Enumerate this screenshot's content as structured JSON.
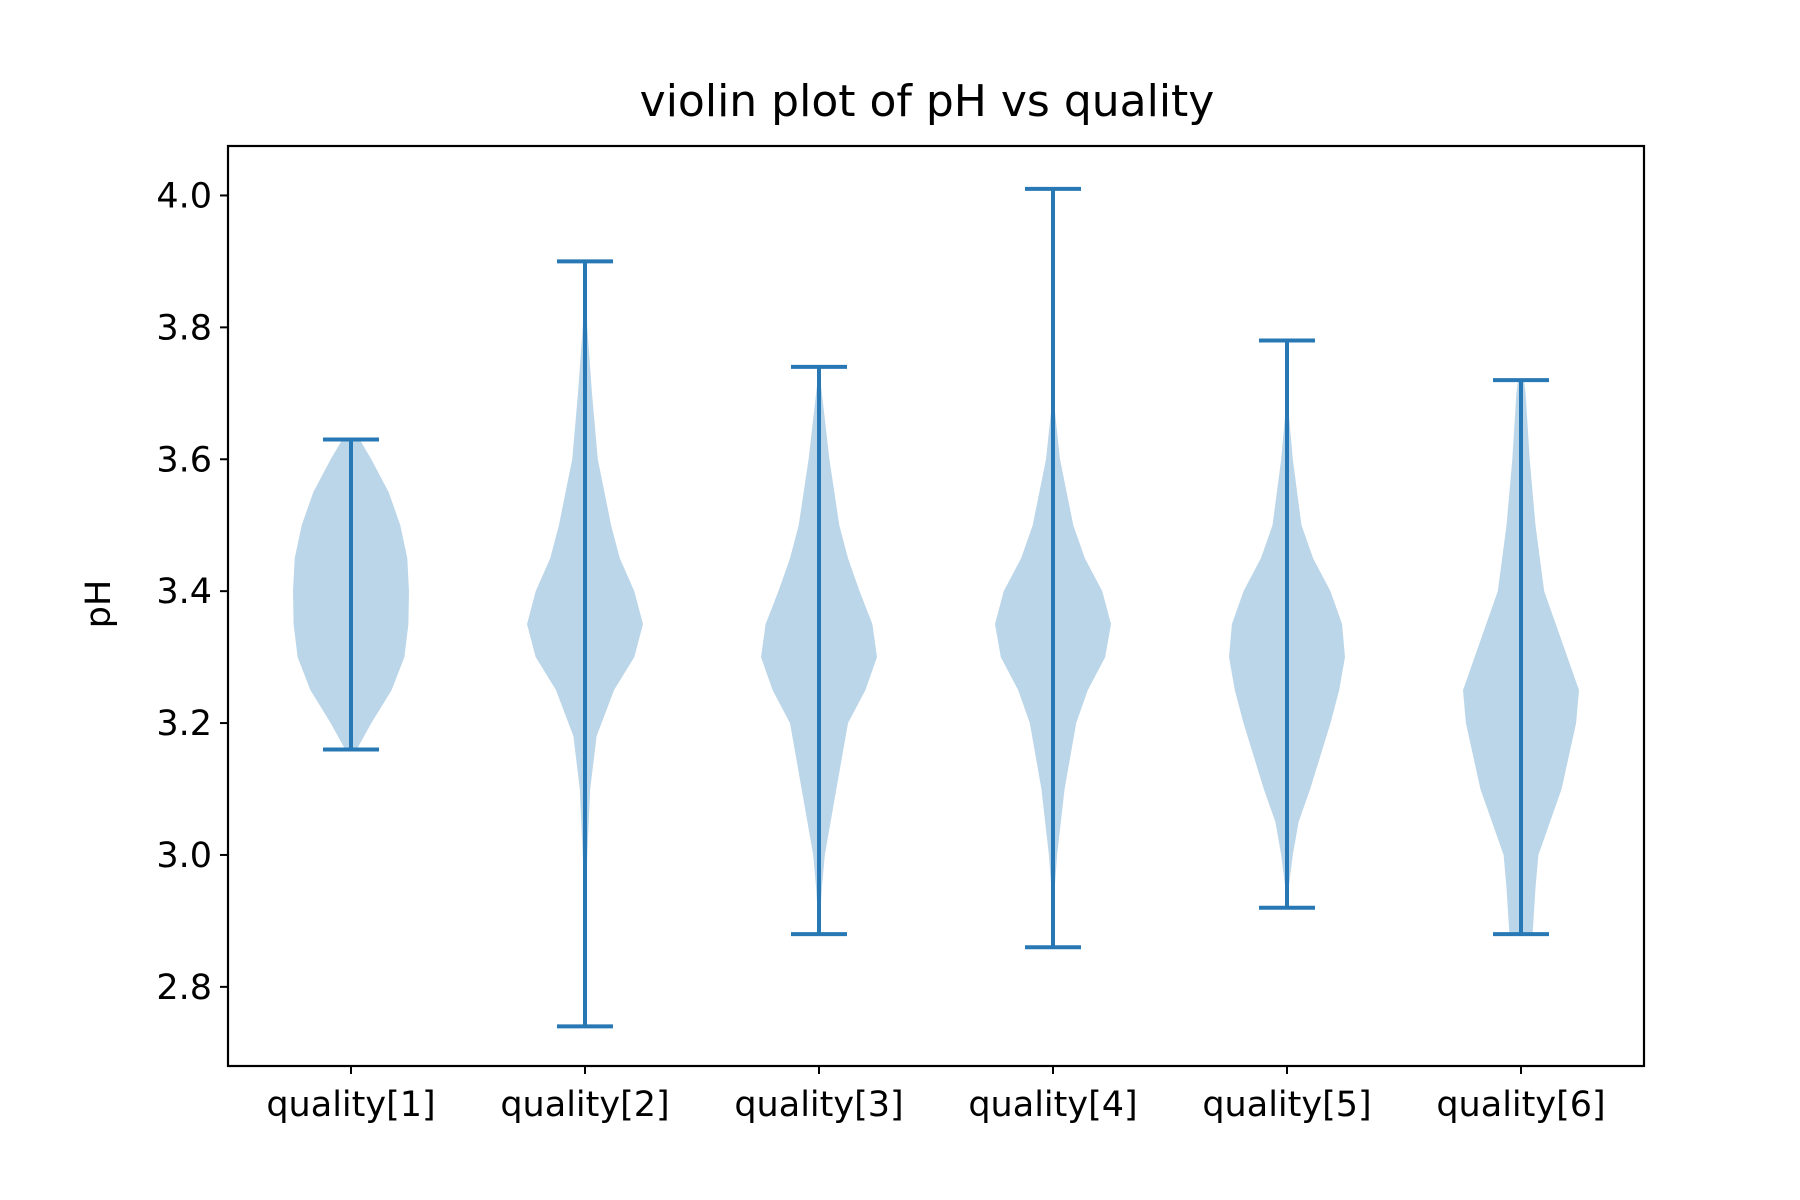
{
  "chart_data": {
    "type": "violin",
    "title": "violin plot of pH vs quality",
    "xlabel": "",
    "ylabel": "pH",
    "ylim": [
      2.68,
      4.075
    ],
    "yticks": [
      2.8,
      3.0,
      3.2,
      3.4,
      3.6,
      3.8,
      4.0
    ],
    "ytick_labels": [
      "2.8",
      "3.0",
      "3.2",
      "3.4",
      "3.6",
      "3.8",
      "4.0"
    ],
    "categories": [
      "quality[1]",
      "quality[2]",
      "quality[3]",
      "quality[4]",
      "quality[5]",
      "quality[6]"
    ],
    "grid": false,
    "colors": {
      "line": "#2878b5",
      "fill": "#bcd6e9"
    },
    "violins": [
      {
        "min": 3.16,
        "max": 3.63,
        "profile": [
          [
            3.16,
            0.1
          ],
          [
            3.2,
            0.35
          ],
          [
            3.25,
            0.7
          ],
          [
            3.3,
            0.92
          ],
          [
            3.35,
            0.99
          ],
          [
            3.4,
            1.0
          ],
          [
            3.45,
            0.97
          ],
          [
            3.5,
            0.85
          ],
          [
            3.55,
            0.65
          ],
          [
            3.6,
            0.35
          ],
          [
            3.63,
            0.15
          ]
        ]
      },
      {
        "min": 2.74,
        "max": 3.9,
        "profile": [
          [
            2.74,
            0.0
          ],
          [
            2.9,
            0.0
          ],
          [
            3.0,
            0.04
          ],
          [
            3.1,
            0.09
          ],
          [
            3.18,
            0.2
          ],
          [
            3.25,
            0.5
          ],
          [
            3.3,
            0.85
          ],
          [
            3.35,
            1.0
          ],
          [
            3.4,
            0.85
          ],
          [
            3.45,
            0.6
          ],
          [
            3.5,
            0.45
          ],
          [
            3.6,
            0.22
          ],
          [
            3.7,
            0.12
          ],
          [
            3.8,
            0.04
          ],
          [
            3.9,
            0.0
          ]
        ]
      },
      {
        "min": 2.88,
        "max": 3.74,
        "profile": [
          [
            2.88,
            0.0
          ],
          [
            2.95,
            0.05
          ],
          [
            3.0,
            0.1
          ],
          [
            3.05,
            0.2
          ],
          [
            3.1,
            0.3
          ],
          [
            3.15,
            0.4
          ],
          [
            3.2,
            0.5
          ],
          [
            3.25,
            0.8
          ],
          [
            3.3,
            1.0
          ],
          [
            3.35,
            0.92
          ],
          [
            3.4,
            0.7
          ],
          [
            3.45,
            0.5
          ],
          [
            3.5,
            0.35
          ],
          [
            3.6,
            0.18
          ],
          [
            3.7,
            0.05
          ],
          [
            3.74,
            0.0
          ]
        ]
      },
      {
        "min": 2.86,
        "max": 4.01,
        "profile": [
          [
            2.86,
            0.0
          ],
          [
            2.95,
            0.03
          ],
          [
            3.0,
            0.07
          ],
          [
            3.1,
            0.2
          ],
          [
            3.2,
            0.4
          ],
          [
            3.25,
            0.6
          ],
          [
            3.3,
            0.9
          ],
          [
            3.35,
            1.0
          ],
          [
            3.4,
            0.85
          ],
          [
            3.45,
            0.55
          ],
          [
            3.5,
            0.35
          ],
          [
            3.6,
            0.12
          ],
          [
            3.7,
            0.0
          ],
          [
            4.01,
            0.0
          ]
        ]
      },
      {
        "min": 2.92,
        "max": 3.78,
        "profile": [
          [
            2.92,
            0.0
          ],
          [
            2.95,
            0.03
          ],
          [
            3.0,
            0.1
          ],
          [
            3.05,
            0.2
          ],
          [
            3.1,
            0.4
          ],
          [
            3.2,
            0.75
          ],
          [
            3.25,
            0.9
          ],
          [
            3.3,
            1.0
          ],
          [
            3.35,
            0.95
          ],
          [
            3.4,
            0.75
          ],
          [
            3.45,
            0.45
          ],
          [
            3.5,
            0.25
          ],
          [
            3.6,
            0.1
          ],
          [
            3.7,
            0.0
          ],
          [
            3.78,
            0.0
          ]
        ]
      },
      {
        "min": 2.88,
        "max": 3.72,
        "profile": [
          [
            2.88,
            0.2
          ],
          [
            2.95,
            0.25
          ],
          [
            3.0,
            0.3
          ],
          [
            3.05,
            0.5
          ],
          [
            3.1,
            0.7
          ],
          [
            3.2,
            0.95
          ],
          [
            3.25,
            1.0
          ],
          [
            3.3,
            0.8
          ],
          [
            3.35,
            0.6
          ],
          [
            3.4,
            0.4
          ],
          [
            3.5,
            0.25
          ],
          [
            3.6,
            0.15
          ],
          [
            3.7,
            0.08
          ],
          [
            3.72,
            0.05
          ]
        ]
      }
    ]
  }
}
